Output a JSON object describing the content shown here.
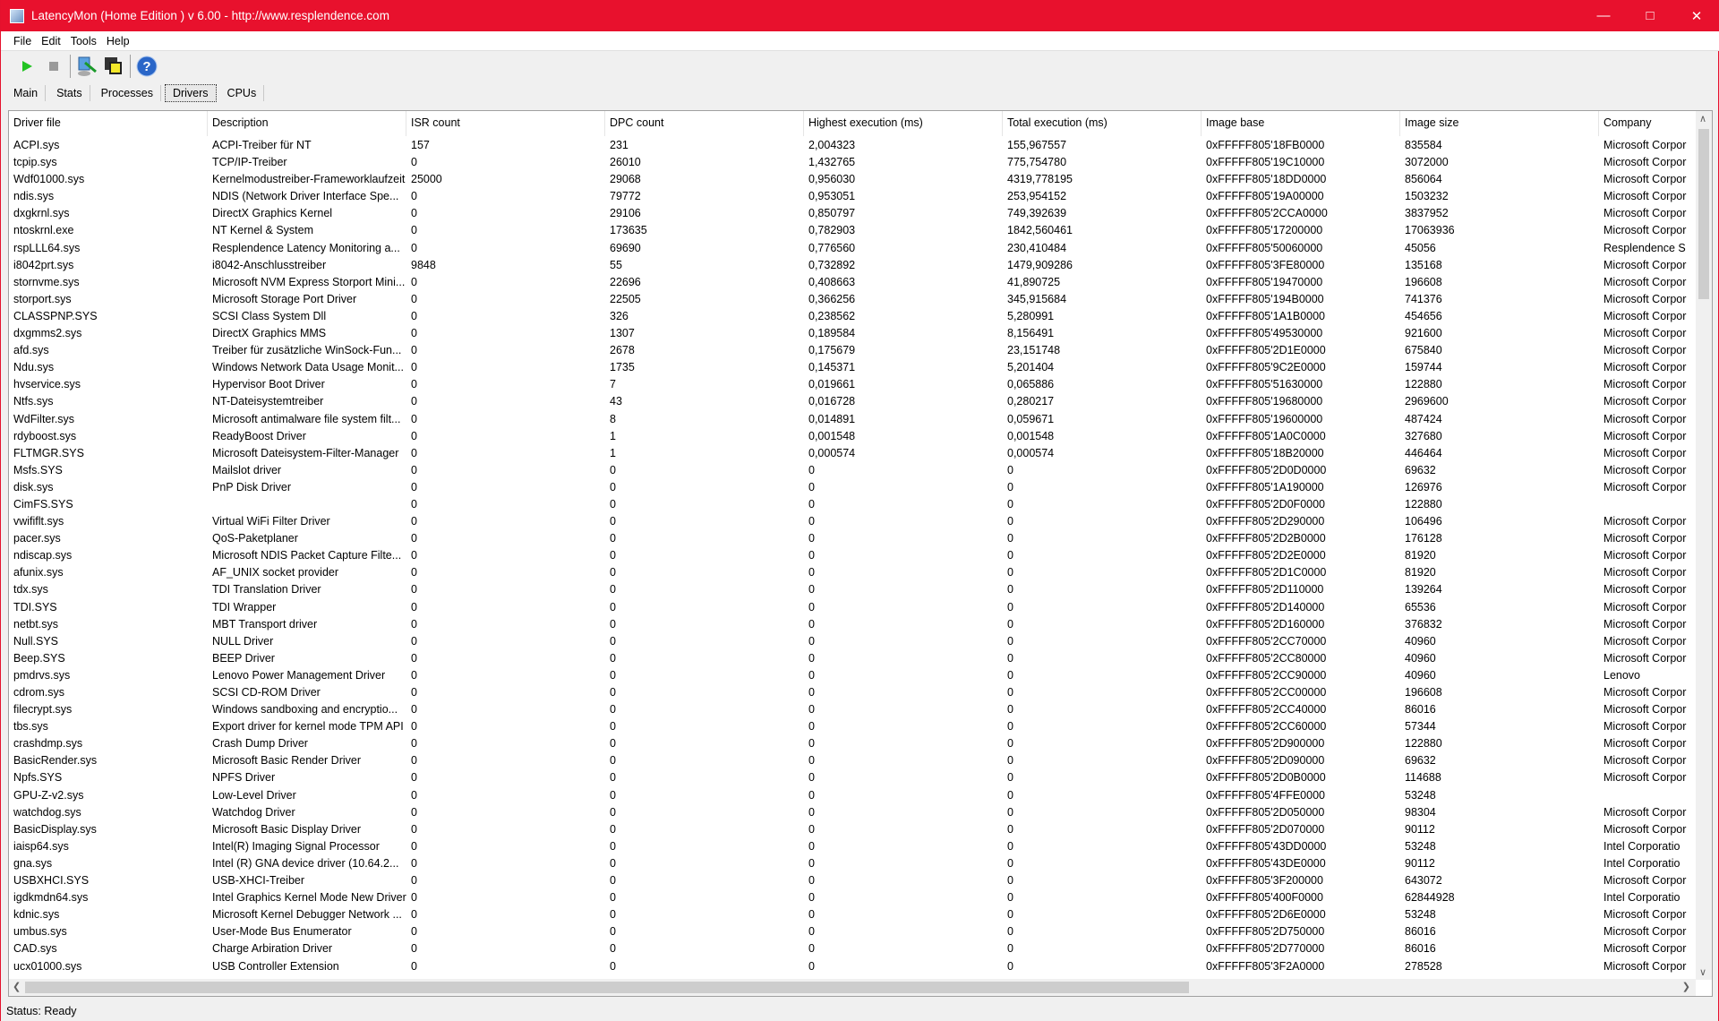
{
  "window": {
    "title": "LatencyMon  (Home Edition )  v 6.00 - http://www.resplendence.com",
    "accent": "#e8112d"
  },
  "menu": [
    "File",
    "Edit",
    "Tools",
    "Help"
  ],
  "toolbar": [
    {
      "icon": "play-icon"
    },
    {
      "icon": "stop-icon"
    },
    {
      "icon": "monitor-tool-icon"
    },
    {
      "icon": "windows-icon"
    },
    {
      "icon": "help-icon"
    }
  ],
  "tabs": [
    {
      "label": "Main"
    },
    {
      "label": "Stats"
    },
    {
      "label": "Processes"
    },
    {
      "label": "Drivers",
      "active": true
    },
    {
      "label": "CPUs"
    }
  ],
  "table": {
    "columns": [
      "Driver file",
      "Description",
      "ISR count",
      "DPC count",
      "Highest execution (ms)",
      "Total execution (ms)",
      "Image base",
      "Image size",
      "Company"
    ],
    "rows": [
      [
        "ACPI.sys",
        "ACPI-Treiber für NT",
        "157",
        "231",
        "2,004323",
        "155,967557",
        "0xFFFFF805'18FB0000",
        "835584",
        "Microsoft Corpor"
      ],
      [
        "tcpip.sys",
        "TCP/IP-Treiber",
        "0",
        "26010",
        "1,432765",
        "775,754780",
        "0xFFFFF805'19C10000",
        "3072000",
        "Microsoft Corpor"
      ],
      [
        "Wdf01000.sys",
        "Kernelmodustreiber-Frameworklaufzeit",
        "25000",
        "29068",
        "0,956030",
        "4319,778195",
        "0xFFFFF805'18DD0000",
        "856064",
        "Microsoft Corpor"
      ],
      [
        "ndis.sys",
        "NDIS (Network Driver Interface Spe...",
        "0",
        "79772",
        "0,953051",
        "253,954152",
        "0xFFFFF805'19A00000",
        "1503232",
        "Microsoft Corpor"
      ],
      [
        "dxgkrnl.sys",
        "DirectX Graphics Kernel",
        "0",
        "29106",
        "0,850797",
        "749,392639",
        "0xFFFFF805'2CCA0000",
        "3837952",
        "Microsoft Corpor"
      ],
      [
        "ntoskrnl.exe",
        "NT Kernel & System",
        "0",
        "173635",
        "0,782903",
        "1842,560461",
        "0xFFFFF805'17200000",
        "17063936",
        "Microsoft Corpor"
      ],
      [
        "rspLLL64.sys",
        "Resplendence Latency Monitoring a...",
        "0",
        "69690",
        "0,776560",
        "230,410484",
        "0xFFFFF805'50060000",
        "45056",
        "Resplendence S"
      ],
      [
        "i8042prt.sys",
        "i8042-Anschlusstreiber",
        "9848",
        "55",
        "0,732892",
        "1479,909286",
        "0xFFFFF805'3FE80000",
        "135168",
        "Microsoft Corpor"
      ],
      [
        "stornvme.sys",
        "Microsoft NVM Express Storport Mini...",
        "0",
        "22696",
        "0,408663",
        "41,890725",
        "0xFFFFF805'19470000",
        "196608",
        "Microsoft Corpor"
      ],
      [
        "storport.sys",
        "Microsoft Storage Port Driver",
        "0",
        "22505",
        "0,366256",
        "345,915684",
        "0xFFFFF805'194B0000",
        "741376",
        "Microsoft Corpor"
      ],
      [
        "CLASSPNP.SYS",
        "SCSI Class System Dll",
        "0",
        "326",
        "0,238562",
        "5,280991",
        "0xFFFFF805'1A1B0000",
        "454656",
        "Microsoft Corpor"
      ],
      [
        "dxgmms2.sys",
        "DirectX Graphics MMS",
        "0",
        "1307",
        "0,189584",
        "8,156491",
        "0xFFFFF805'49530000",
        "921600",
        "Microsoft Corpor"
      ],
      [
        "afd.sys",
        "Treiber für zusätzliche WinSock-Fun...",
        "0",
        "2678",
        "0,175679",
        "23,151748",
        "0xFFFFF805'2D1E0000",
        "675840",
        "Microsoft Corpor"
      ],
      [
        "Ndu.sys",
        "Windows Network Data Usage Monit...",
        "0",
        "1735",
        "0,145371",
        "5,201404",
        "0xFFFFF805'9C2E0000",
        "159744",
        "Microsoft Corpor"
      ],
      [
        "hvservice.sys",
        "Hypervisor Boot Driver",
        "0",
        "7",
        "0,019661",
        "0,065886",
        "0xFFFFF805'51630000",
        "122880",
        "Microsoft Corpor"
      ],
      [
        "Ntfs.sys",
        "NT-Dateisystemtreiber",
        "0",
        "43",
        "0,016728",
        "0,280217",
        "0xFFFFF805'19680000",
        "2969600",
        "Microsoft Corpor"
      ],
      [
        "WdFilter.sys",
        "Microsoft antimalware file system filt...",
        "0",
        "8",
        "0,014891",
        "0,059671",
        "0xFFFFF805'19600000",
        "487424",
        "Microsoft Corpor"
      ],
      [
        "rdyboost.sys",
        "ReadyBoost Driver",
        "0",
        "1",
        "0,001548",
        "0,001548",
        "0xFFFFF805'1A0C0000",
        "327680",
        "Microsoft Corpor"
      ],
      [
        "FLTMGR.SYS",
        "Microsoft Dateisystem-Filter-Manager",
        "0",
        "1",
        "0,000574",
        "0,000574",
        "0xFFFFF805'18B20000",
        "446464",
        "Microsoft Corpor"
      ],
      [
        "Msfs.SYS",
        "Mailslot driver",
        "0",
        "0",
        "0",
        "0",
        "0xFFFFF805'2D0D0000",
        "69632",
        "Microsoft Corpor"
      ],
      [
        "disk.sys",
        "PnP Disk Driver",
        "0",
        "0",
        "0",
        "0",
        "0xFFFFF805'1A190000",
        "126976",
        "Microsoft Corpor"
      ],
      [
        "CimFS.SYS",
        "",
        "0",
        "0",
        "0",
        "0",
        "0xFFFFF805'2D0F0000",
        "122880",
        ""
      ],
      [
        "vwififlt.sys",
        "Virtual WiFi Filter Driver",
        "0",
        "0",
        "0",
        "0",
        "0xFFFFF805'2D290000",
        "106496",
        "Microsoft Corpor"
      ],
      [
        "pacer.sys",
        "QoS-Paketplaner",
        "0",
        "0",
        "0",
        "0",
        "0xFFFFF805'2D2B0000",
        "176128",
        "Microsoft Corpor"
      ],
      [
        "ndiscap.sys",
        "Microsoft NDIS Packet Capture Filte...",
        "0",
        "0",
        "0",
        "0",
        "0xFFFFF805'2D2E0000",
        "81920",
        "Microsoft Corpor"
      ],
      [
        "afunix.sys",
        "AF_UNIX socket provider",
        "0",
        "0",
        "0",
        "0",
        "0xFFFFF805'2D1C0000",
        "81920",
        "Microsoft Corpor"
      ],
      [
        "tdx.sys",
        "TDI Translation Driver",
        "0",
        "0",
        "0",
        "0",
        "0xFFFFF805'2D110000",
        "139264",
        "Microsoft Corpor"
      ],
      [
        "TDI.SYS",
        "TDI Wrapper",
        "0",
        "0",
        "0",
        "0",
        "0xFFFFF805'2D140000",
        "65536",
        "Microsoft Corpor"
      ],
      [
        "netbt.sys",
        "MBT Transport driver",
        "0",
        "0",
        "0",
        "0",
        "0xFFFFF805'2D160000",
        "376832",
        "Microsoft Corpor"
      ],
      [
        "Null.SYS",
        "NULL Driver",
        "0",
        "0",
        "0",
        "0",
        "0xFFFFF805'2CC70000",
        "40960",
        "Microsoft Corpor"
      ],
      [
        "Beep.SYS",
        "BEEP Driver",
        "0",
        "0",
        "0",
        "0",
        "0xFFFFF805'2CC80000",
        "40960",
        "Microsoft Corpor"
      ],
      [
        "pmdrvs.sys",
        "Lenovo Power Management Driver",
        "0",
        "0",
        "0",
        "0",
        "0xFFFFF805'2CC90000",
        "40960",
        "Lenovo"
      ],
      [
        "cdrom.sys",
        "SCSI CD-ROM Driver",
        "0",
        "0",
        "0",
        "0",
        "0xFFFFF805'2CC00000",
        "196608",
        "Microsoft Corpor"
      ],
      [
        "filecrypt.sys",
        "Windows sandboxing and encryptio...",
        "0",
        "0",
        "0",
        "0",
        "0xFFFFF805'2CC40000",
        "86016",
        "Microsoft Corpor"
      ],
      [
        "tbs.sys",
        "Export driver for kernel mode TPM API",
        "0",
        "0",
        "0",
        "0",
        "0xFFFFF805'2CC60000",
        "57344",
        "Microsoft Corpor"
      ],
      [
        "crashdmp.sys",
        "Crash Dump Driver",
        "0",
        "0",
        "0",
        "0",
        "0xFFFFF805'2D900000",
        "122880",
        "Microsoft Corpor"
      ],
      [
        "BasicRender.sys",
        "Microsoft Basic Render Driver",
        "0",
        "0",
        "0",
        "0",
        "0xFFFFF805'2D090000",
        "69632",
        "Microsoft Corpor"
      ],
      [
        "Npfs.SYS",
        "NPFS Driver",
        "0",
        "0",
        "0",
        "0",
        "0xFFFFF805'2D0B0000",
        "114688",
        "Microsoft Corpor"
      ],
      [
        "GPU-Z-v2.sys",
        "Low-Level Driver",
        "0",
        "0",
        "0",
        "0",
        "0xFFFFF805'4FFE0000",
        "53248",
        ""
      ],
      [
        "watchdog.sys",
        "Watchdog Driver",
        "0",
        "0",
        "0",
        "0",
        "0xFFFFF805'2D050000",
        "98304",
        "Microsoft Corpor"
      ],
      [
        "BasicDisplay.sys",
        "Microsoft Basic Display Driver",
        "0",
        "0",
        "0",
        "0",
        "0xFFFFF805'2D070000",
        "90112",
        "Microsoft Corpor"
      ],
      [
        "iaisp64.sys",
        "Intel(R) Imaging Signal Processor",
        "0",
        "0",
        "0",
        "0",
        "0xFFFFF805'43DD0000",
        "53248",
        "Intel Corporatio"
      ],
      [
        "gna.sys",
        "Intel (R) GNA device driver (10.64.2...",
        "0",
        "0",
        "0",
        "0",
        "0xFFFFF805'43DE0000",
        "90112",
        "Intel Corporatio"
      ],
      [
        "USBXHCI.SYS",
        "USB-XHCI-Treiber",
        "0",
        "0",
        "0",
        "0",
        "0xFFFFF805'3F200000",
        "643072",
        "Microsoft Corpor"
      ],
      [
        "igdkmdn64.sys",
        "Intel Graphics Kernel Mode New Driver",
        "0",
        "0",
        "0",
        "0",
        "0xFFFFF805'400F0000",
        "62844928",
        "Intel Corporatio"
      ],
      [
        "kdnic.sys",
        "Microsoft Kernel Debugger Network ...",
        "0",
        "0",
        "0",
        "0",
        "0xFFFFF805'2D6E0000",
        "53248",
        "Microsoft Corpor"
      ],
      [
        "umbus.sys",
        "User-Mode Bus Enumerator",
        "0",
        "0",
        "0",
        "0",
        "0xFFFFF805'2D750000",
        "86016",
        "Microsoft Corpor"
      ],
      [
        "CAD.sys",
        "Charge Arbiration Driver",
        "0",
        "0",
        "0",
        "0",
        "0xFFFFF805'2D770000",
        "86016",
        "Microsoft Corpor"
      ],
      [
        "ucx01000.sys",
        "USB Controller Extension",
        "0",
        "0",
        "0",
        "0",
        "0xFFFFF805'3F2A0000",
        "278528",
        "Microsoft Corpor"
      ]
    ]
  },
  "status": "Status: Ready"
}
